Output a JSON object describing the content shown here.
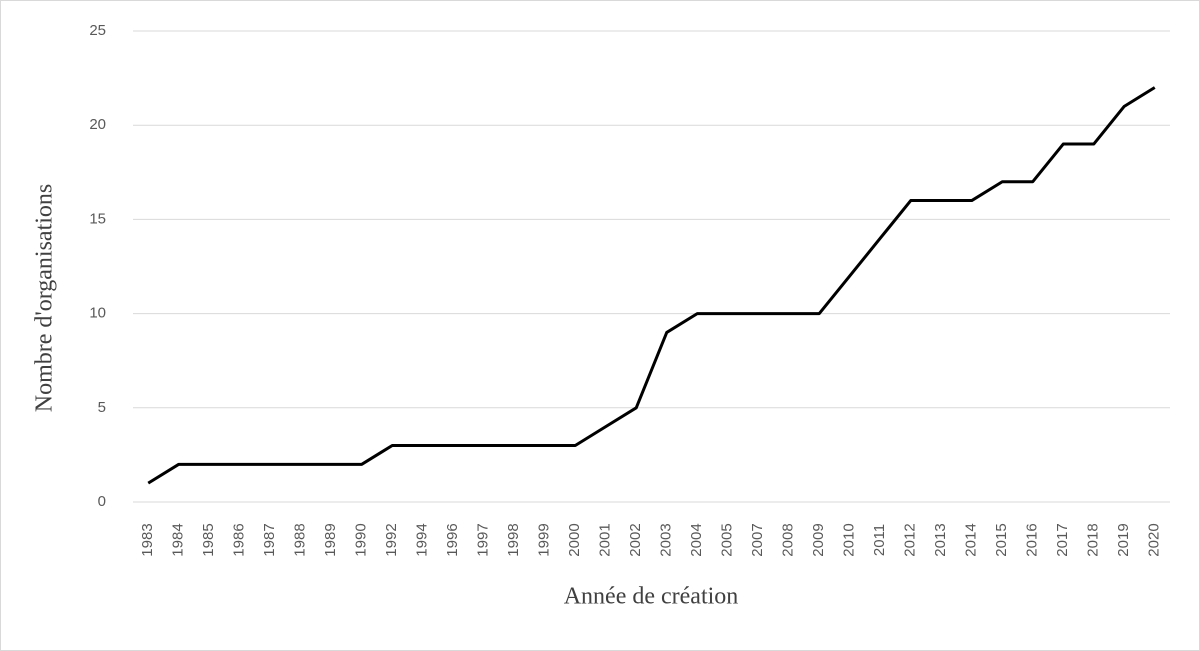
{
  "chart_data": {
    "type": "line",
    "x_label": "Année  de création",
    "y_label": "Nombre d'organisations",
    "categories": [
      "1983",
      "1984",
      "1985",
      "1986",
      "1987",
      "1988",
      "1989",
      "1990",
      "1992",
      "1994",
      "1996",
      "1997",
      "1998",
      "1999",
      "2000",
      "2001",
      "2002",
      "2003",
      "2004",
      "2005",
      "2007",
      "2008",
      "2009",
      "2010",
      "2011",
      "2012",
      "2013",
      "2014",
      "2015",
      "2016",
      "2017",
      "2018",
      "2019",
      "2020"
    ],
    "values": [
      1,
      2,
      2,
      2,
      2,
      2,
      2,
      2,
      3,
      3,
      3,
      3,
      3,
      3,
      3,
      4,
      5,
      9,
      10,
      10,
      10,
      10,
      10,
      12,
      14,
      16,
      16,
      16,
      17,
      17,
      19,
      19,
      21,
      22
    ],
    "color": "#000000",
    "ylim": [
      0,
      25
    ],
    "yticks": [
      0,
      5,
      10,
      15,
      20,
      25
    ],
    "grid": true
  }
}
